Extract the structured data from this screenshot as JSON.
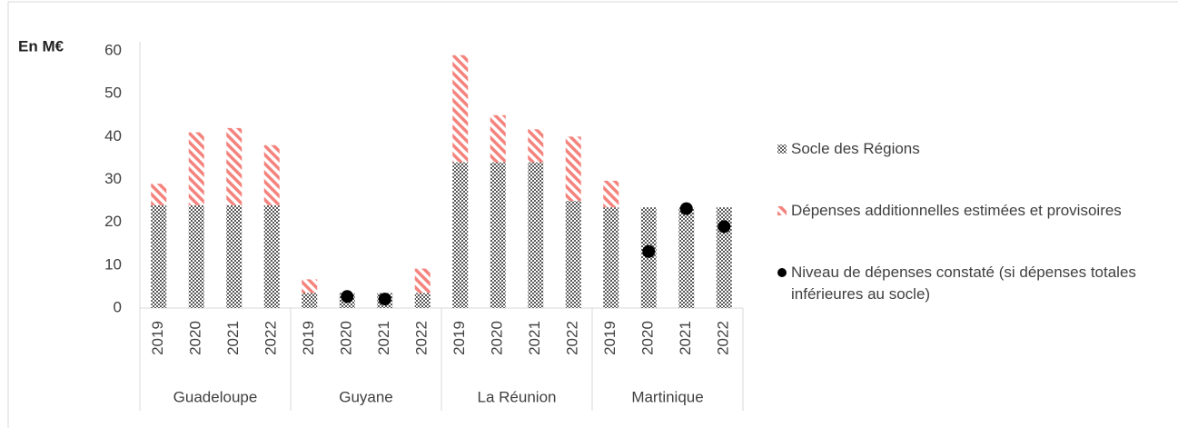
{
  "chart_data": {
    "type": "bar",
    "y_label": "En M€",
    "categories": [
      {
        "group": "Guadeloupe",
        "label": "2019"
      },
      {
        "group": "Guadeloupe",
        "label": "2020"
      },
      {
        "group": "Guadeloupe",
        "label": "2021"
      },
      {
        "group": "Guadeloupe",
        "label": "2022"
      },
      {
        "group": "Guyane",
        "label": "2019"
      },
      {
        "group": "Guyane",
        "label": "2020"
      },
      {
        "group": "Guyane",
        "label": "2021"
      },
      {
        "group": "Guyane",
        "label": "2022"
      },
      {
        "group": "La Réunion",
        "label": "2019"
      },
      {
        "group": "La Réunion",
        "label": "2020"
      },
      {
        "group": "La Réunion",
        "label": "2021"
      },
      {
        "group": "La Réunion",
        "label": "2022"
      },
      {
        "group": "Martinique",
        "label": "2019"
      },
      {
        "group": "Martinique",
        "label": "2020"
      },
      {
        "group": "Martinique",
        "label": "2021"
      },
      {
        "group": "Martinique",
        "label": "2022"
      }
    ],
    "series": [
      {
        "name": "Socle des Régions",
        "color": "#595959",
        "kind": "stack",
        "values": [
          24,
          24,
          24,
          24,
          3.5,
          3.5,
          3.5,
          3.5,
          34,
          34,
          34,
          25,
          23.5,
          23.5,
          23.5,
          23.5
        ]
      },
      {
        "name": "Dépenses additionnelles estimées et provisoires",
        "color": "#f4837d",
        "kind": "stack",
        "values": [
          5,
          17,
          18,
          14,
          3.2,
          null,
          null,
          5.7,
          25,
          11,
          7.7,
          15,
          6.2,
          null,
          null,
          null
        ]
      },
      {
        "name": "Niveau de dépenses constaté (si dépenses totales inférieures au socle)",
        "color": "#000000",
        "kind": "dot",
        "values": [
          null,
          null,
          null,
          null,
          null,
          2.7,
          2.1,
          null,
          null,
          null,
          null,
          null,
          null,
          13.2,
          23.2,
          19
        ]
      }
    ],
    "ylim": [
      0,
      60
    ],
    "yticks": [
      0,
      10,
      20,
      30,
      40,
      50,
      60
    ],
    "grid": false,
    "legend": "right"
  }
}
